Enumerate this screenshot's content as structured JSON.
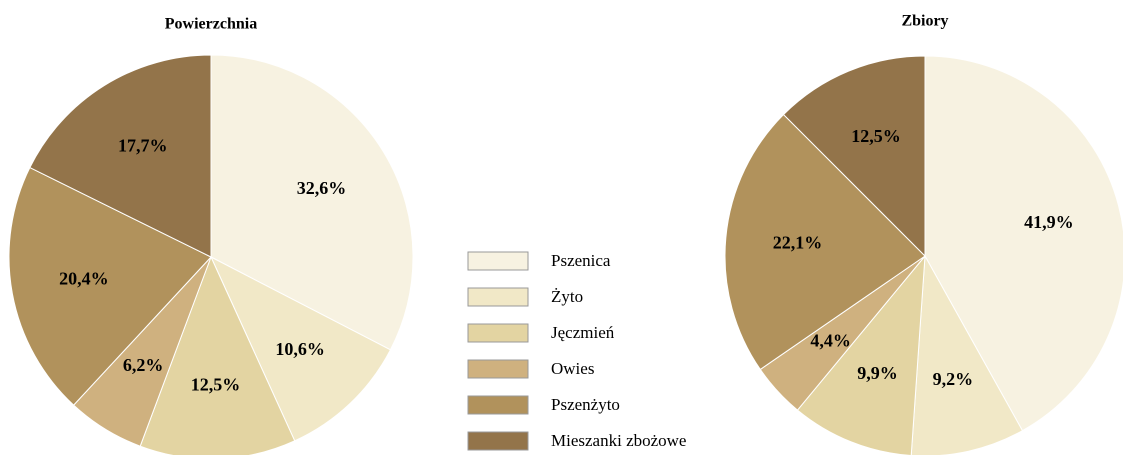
{
  "legend": {
    "categories": [
      "Pszenica",
      "Żyto",
      "Jęczmień",
      "Owies",
      "Pszenżyto",
      "Mieszanki zbożowe"
    ],
    "colors": [
      "#f7f2e1",
      "#f1e8c7",
      "#e3d4a2",
      "#cfb17f",
      "#b1925c",
      "#93744a"
    ]
  },
  "chart_data": [
    {
      "type": "pie",
      "title": "Powierzchnia",
      "values": [
        32.6,
        10.6,
        12.5,
        6.2,
        20.4,
        17.7
      ],
      "value_labels": [
        "32,6%",
        "10,6%",
        "12,5%",
        "6,2%",
        "20,4%",
        "17,7%"
      ]
    },
    {
      "type": "pie",
      "title": "Zbiory",
      "values": [
        41.9,
        9.2,
        9.9,
        4.4,
        22.1,
        12.5
      ],
      "value_labels": [
        "41,9%",
        "9,2%",
        "9,9%",
        "4,4%",
        "22,1%",
        "12,5%"
      ]
    }
  ]
}
